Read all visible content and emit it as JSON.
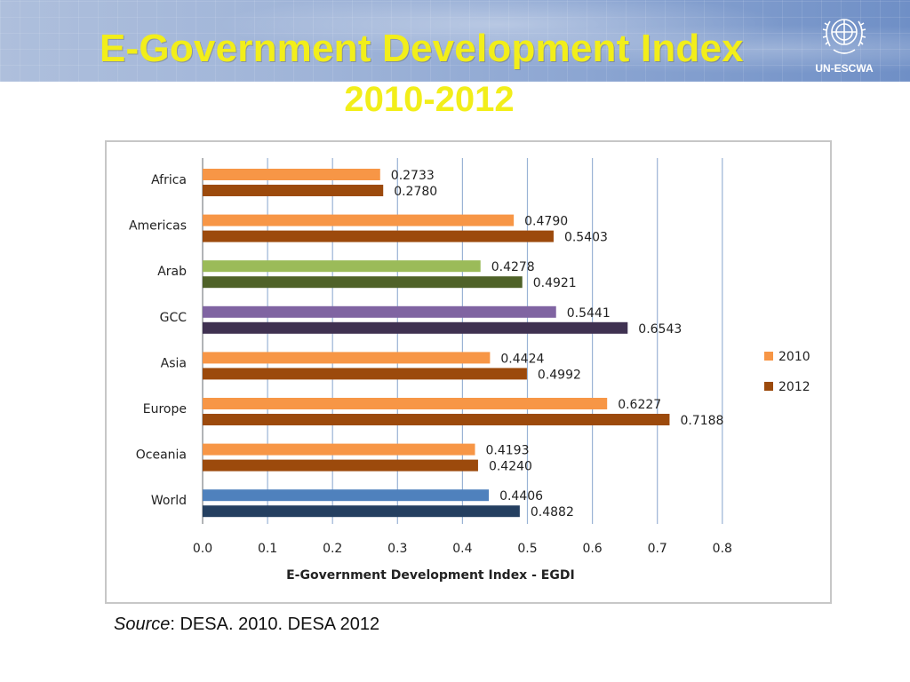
{
  "slide": {
    "title": "E-Government Development Index",
    "subtitle": "2010-2012",
    "logo_text": "UN-ESCWA",
    "source_label": "Source",
    "source_text": ": DESA. 2010. DESA 2012"
  },
  "colors": {
    "title": "#f2ee1a",
    "default_2010": "#f79646",
    "default_2012": "#9c4a0c",
    "arab_2010": "#9bbb59",
    "arab_2012": "#4f6228",
    "gcc_2010": "#8064a2",
    "gcc_2012": "#3f3151",
    "world_2010": "#4f81bd",
    "world_2012": "#243f60",
    "grid": "#9ab3d5"
  },
  "chart_data": {
    "type": "bar",
    "orientation": "horizontal",
    "categories": [
      "Africa",
      "Americas",
      "Arab",
      "GCC",
      "Asia",
      "Europe",
      "Oceania",
      "World"
    ],
    "series": [
      {
        "name": "2010",
        "values": [
          0.2733,
          0.479,
          0.4278,
          0.5441,
          0.4424,
          0.6227,
          0.4193,
          0.4406
        ]
      },
      {
        "name": "2012",
        "values": [
          0.278,
          0.5403,
          0.4921,
          0.6543,
          0.4992,
          0.7188,
          0.424,
          0.4882
        ]
      }
    ],
    "data_labels": [
      [
        "0.2733",
        "0.4790",
        "0.4278",
        "0.5441",
        "0.4424",
        "0.6227",
        "0.4193",
        "0.4406"
      ],
      [
        "0.2780",
        "0.5403",
        "0.4921",
        "0.6543",
        "0.4992",
        "0.7188",
        "0.4240",
        "0.4882"
      ]
    ],
    "xlabel": "E-Government Development Index - EGDI",
    "xlim": [
      0,
      0.8
    ],
    "xticks": [
      "0.0",
      "0.1",
      "0.2",
      "0.3",
      "0.4",
      "0.5",
      "0.6",
      "0.7",
      "0.8"
    ],
    "grid": true,
    "legend": [
      "2010",
      "2012"
    ],
    "legend_position": "right"
  }
}
